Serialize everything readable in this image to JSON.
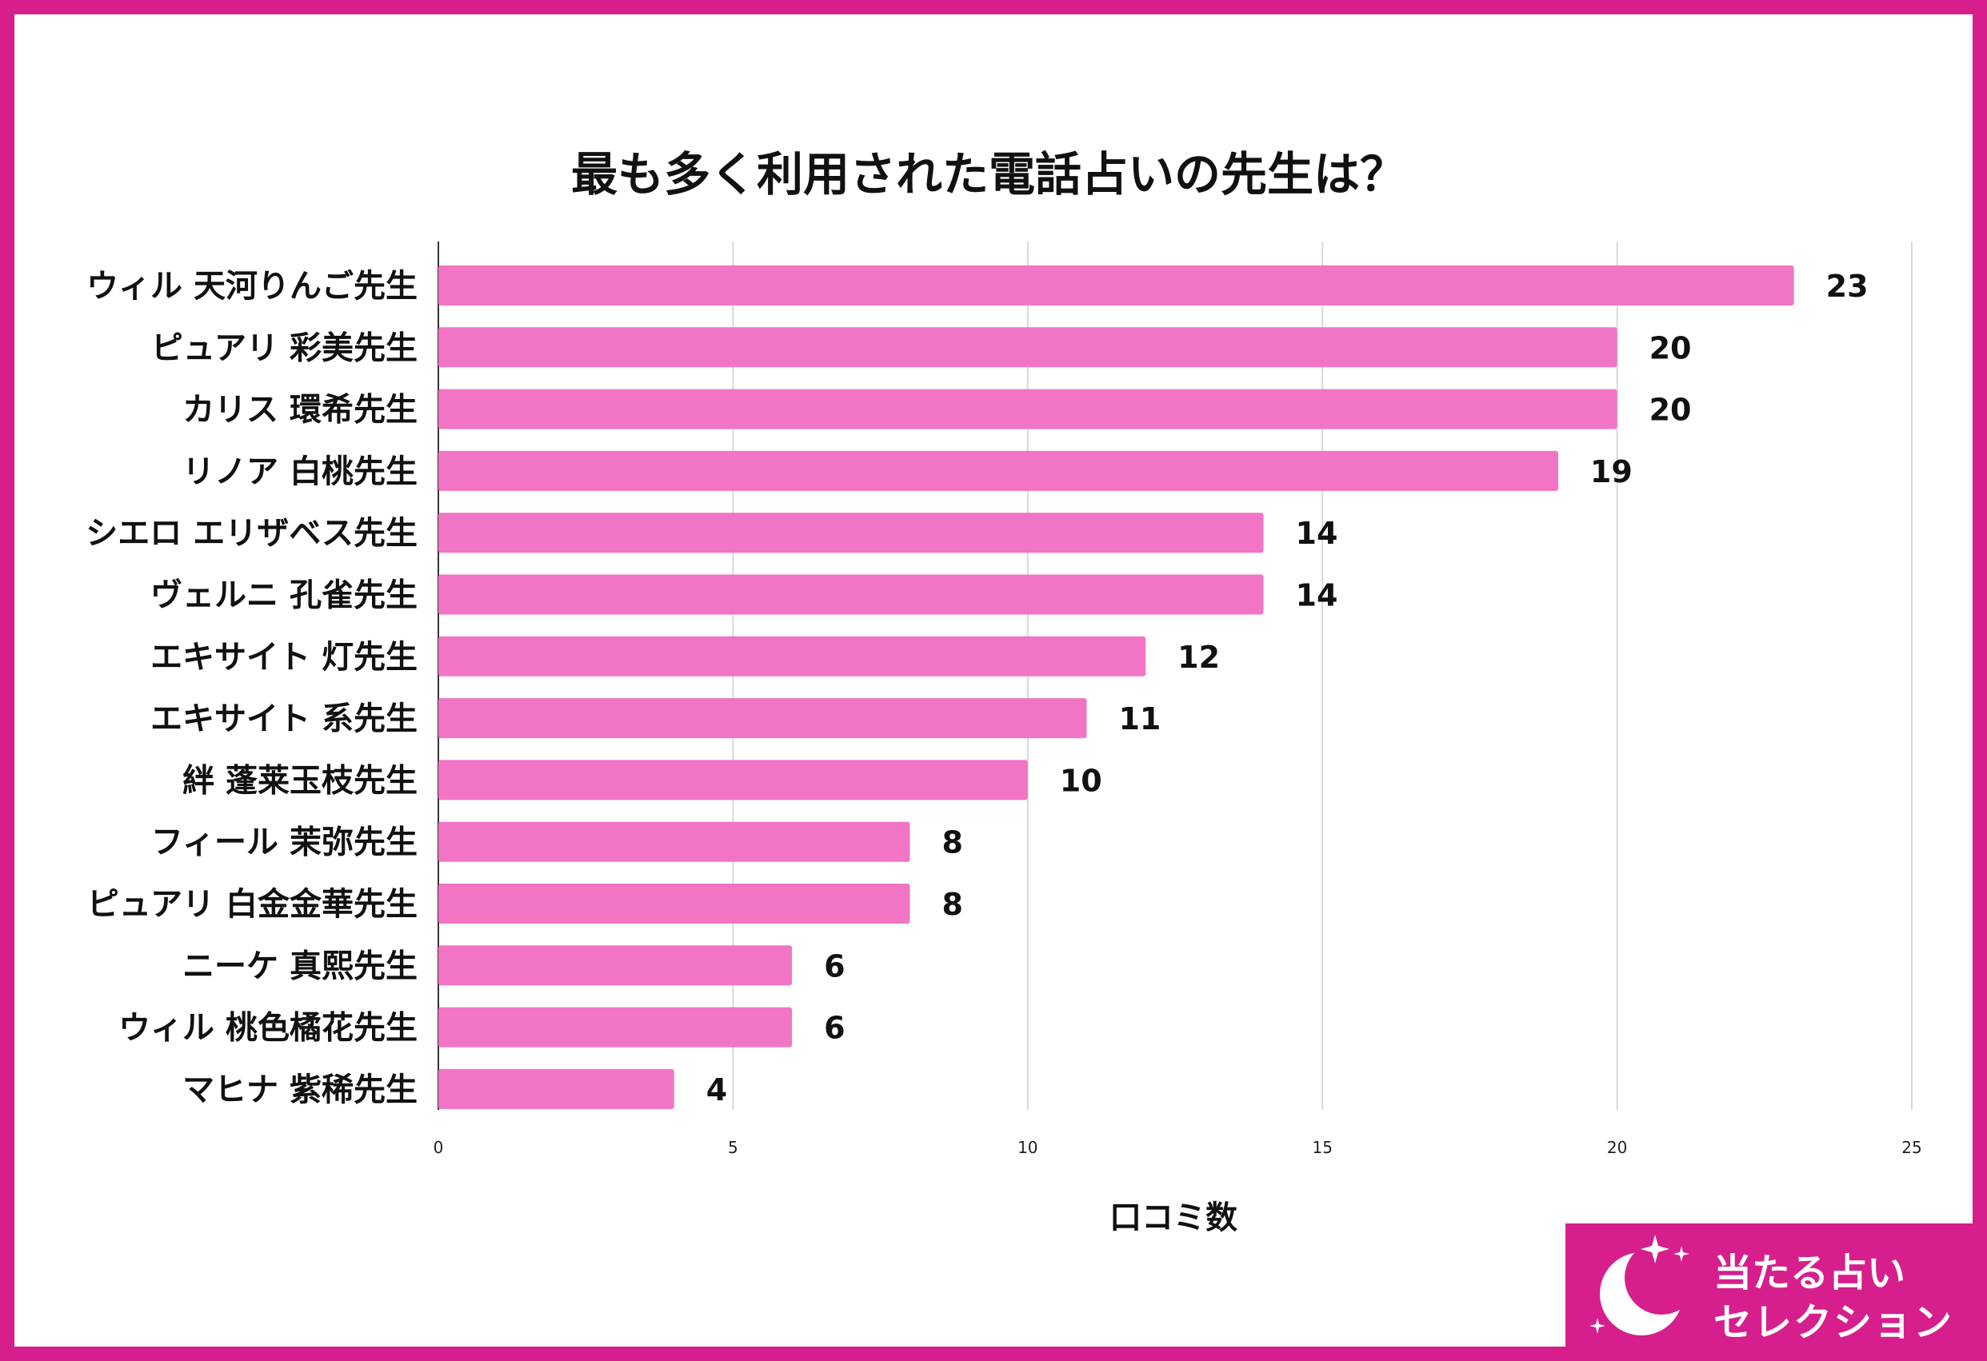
{
  "chart_data": {
    "type": "bar",
    "orientation": "horizontal",
    "title": "最も多く利用された電話占いの先生は？",
    "xlabel": "口コミ数",
    "ylabel": "",
    "xlim": [
      0,
      25
    ],
    "xticks": [
      0,
      5,
      10,
      15,
      20,
      25
    ],
    "grid": true,
    "bar_color": "#f274c4",
    "categories": [
      "ウィル 天河りんご先生",
      "ピュアリ 彩美先生",
      "カリス 環希先生",
      "リノア 白桃先生",
      "シエロ エリザベス先生",
      "ヴェルニ 孔雀先生",
      "エキサイト 灯先生",
      "エキサイト 系先生",
      "絆 蓬莱玉枝先生",
      "フィール 茉弥先生",
      "ピュアリ 白金金華先生",
      "ニーケ 真熙先生",
      "ウィル 桃色橘花先生",
      "マヒナ 紫稀先生"
    ],
    "values": [
      23,
      20,
      20,
      19,
      14,
      14,
      12,
      11,
      10,
      8,
      8,
      6,
      6,
      4
    ]
  },
  "badge": {
    "line1": "当たる占い",
    "line2": "セレクション",
    "color": "#d61f8c"
  },
  "frame_color": "#d61f8c"
}
